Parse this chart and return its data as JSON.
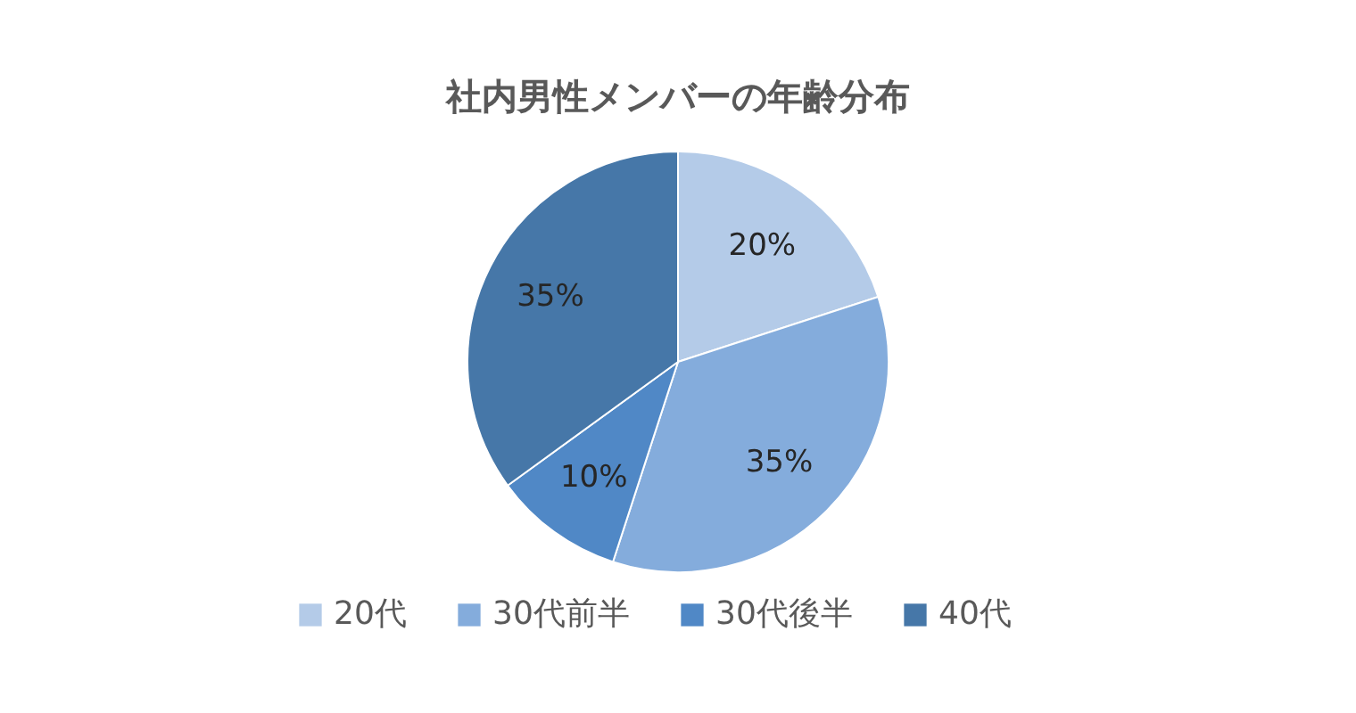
{
  "chart_data": {
    "type": "pie",
    "title": "社内男性メンバーの年齢分布",
    "categories": [
      "20代",
      "30代前半",
      "30代後半",
      "40代"
    ],
    "values": [
      20,
      35,
      10,
      35
    ],
    "colors": [
      "#b4cbe8",
      "#84acdc",
      "#5088c6",
      "#4677a8"
    ],
    "value_labels": [
      "20%",
      "35%",
      "10%",
      "35%"
    ],
    "legend": "bottom"
  }
}
